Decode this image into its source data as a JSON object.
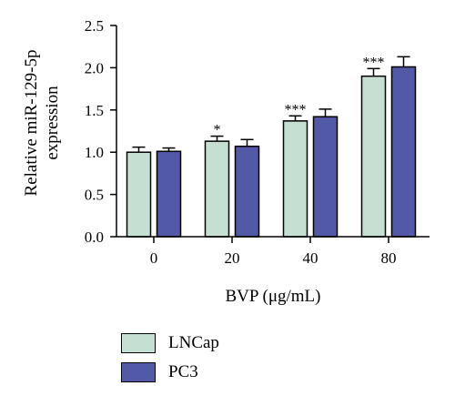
{
  "chart_data": {
    "type": "bar",
    "categories": [
      "0",
      "20",
      "40",
      "80"
    ],
    "series": [
      {
        "name": "LNCap",
        "values": [
          1.0,
          1.13,
          1.37,
          1.9
        ],
        "errors": [
          0.06,
          0.06,
          0.06,
          0.09
        ],
        "color": "#c5e0d2",
        "significance": [
          "",
          "*",
          "***",
          "***"
        ]
      },
      {
        "name": "PC3",
        "values": [
          1.01,
          1.07,
          1.42,
          2.01
        ],
        "errors": [
          0.04,
          0.08,
          0.09,
          0.12
        ],
        "color": "#5259a6",
        "significance": [
          "",
          "",
          "",
          ""
        ]
      }
    ],
    "ylim": [
      0,
      2.5
    ],
    "yticks": [
      "0.0",
      "0.5",
      "1.0",
      "1.5",
      "2.0",
      "2.5"
    ],
    "ylabel_line1": "Relative miR-129-5p",
    "ylabel_line2": "expression",
    "xlabel": "BVP (μg/mL)",
    "legend_position": "bottom-left"
  }
}
